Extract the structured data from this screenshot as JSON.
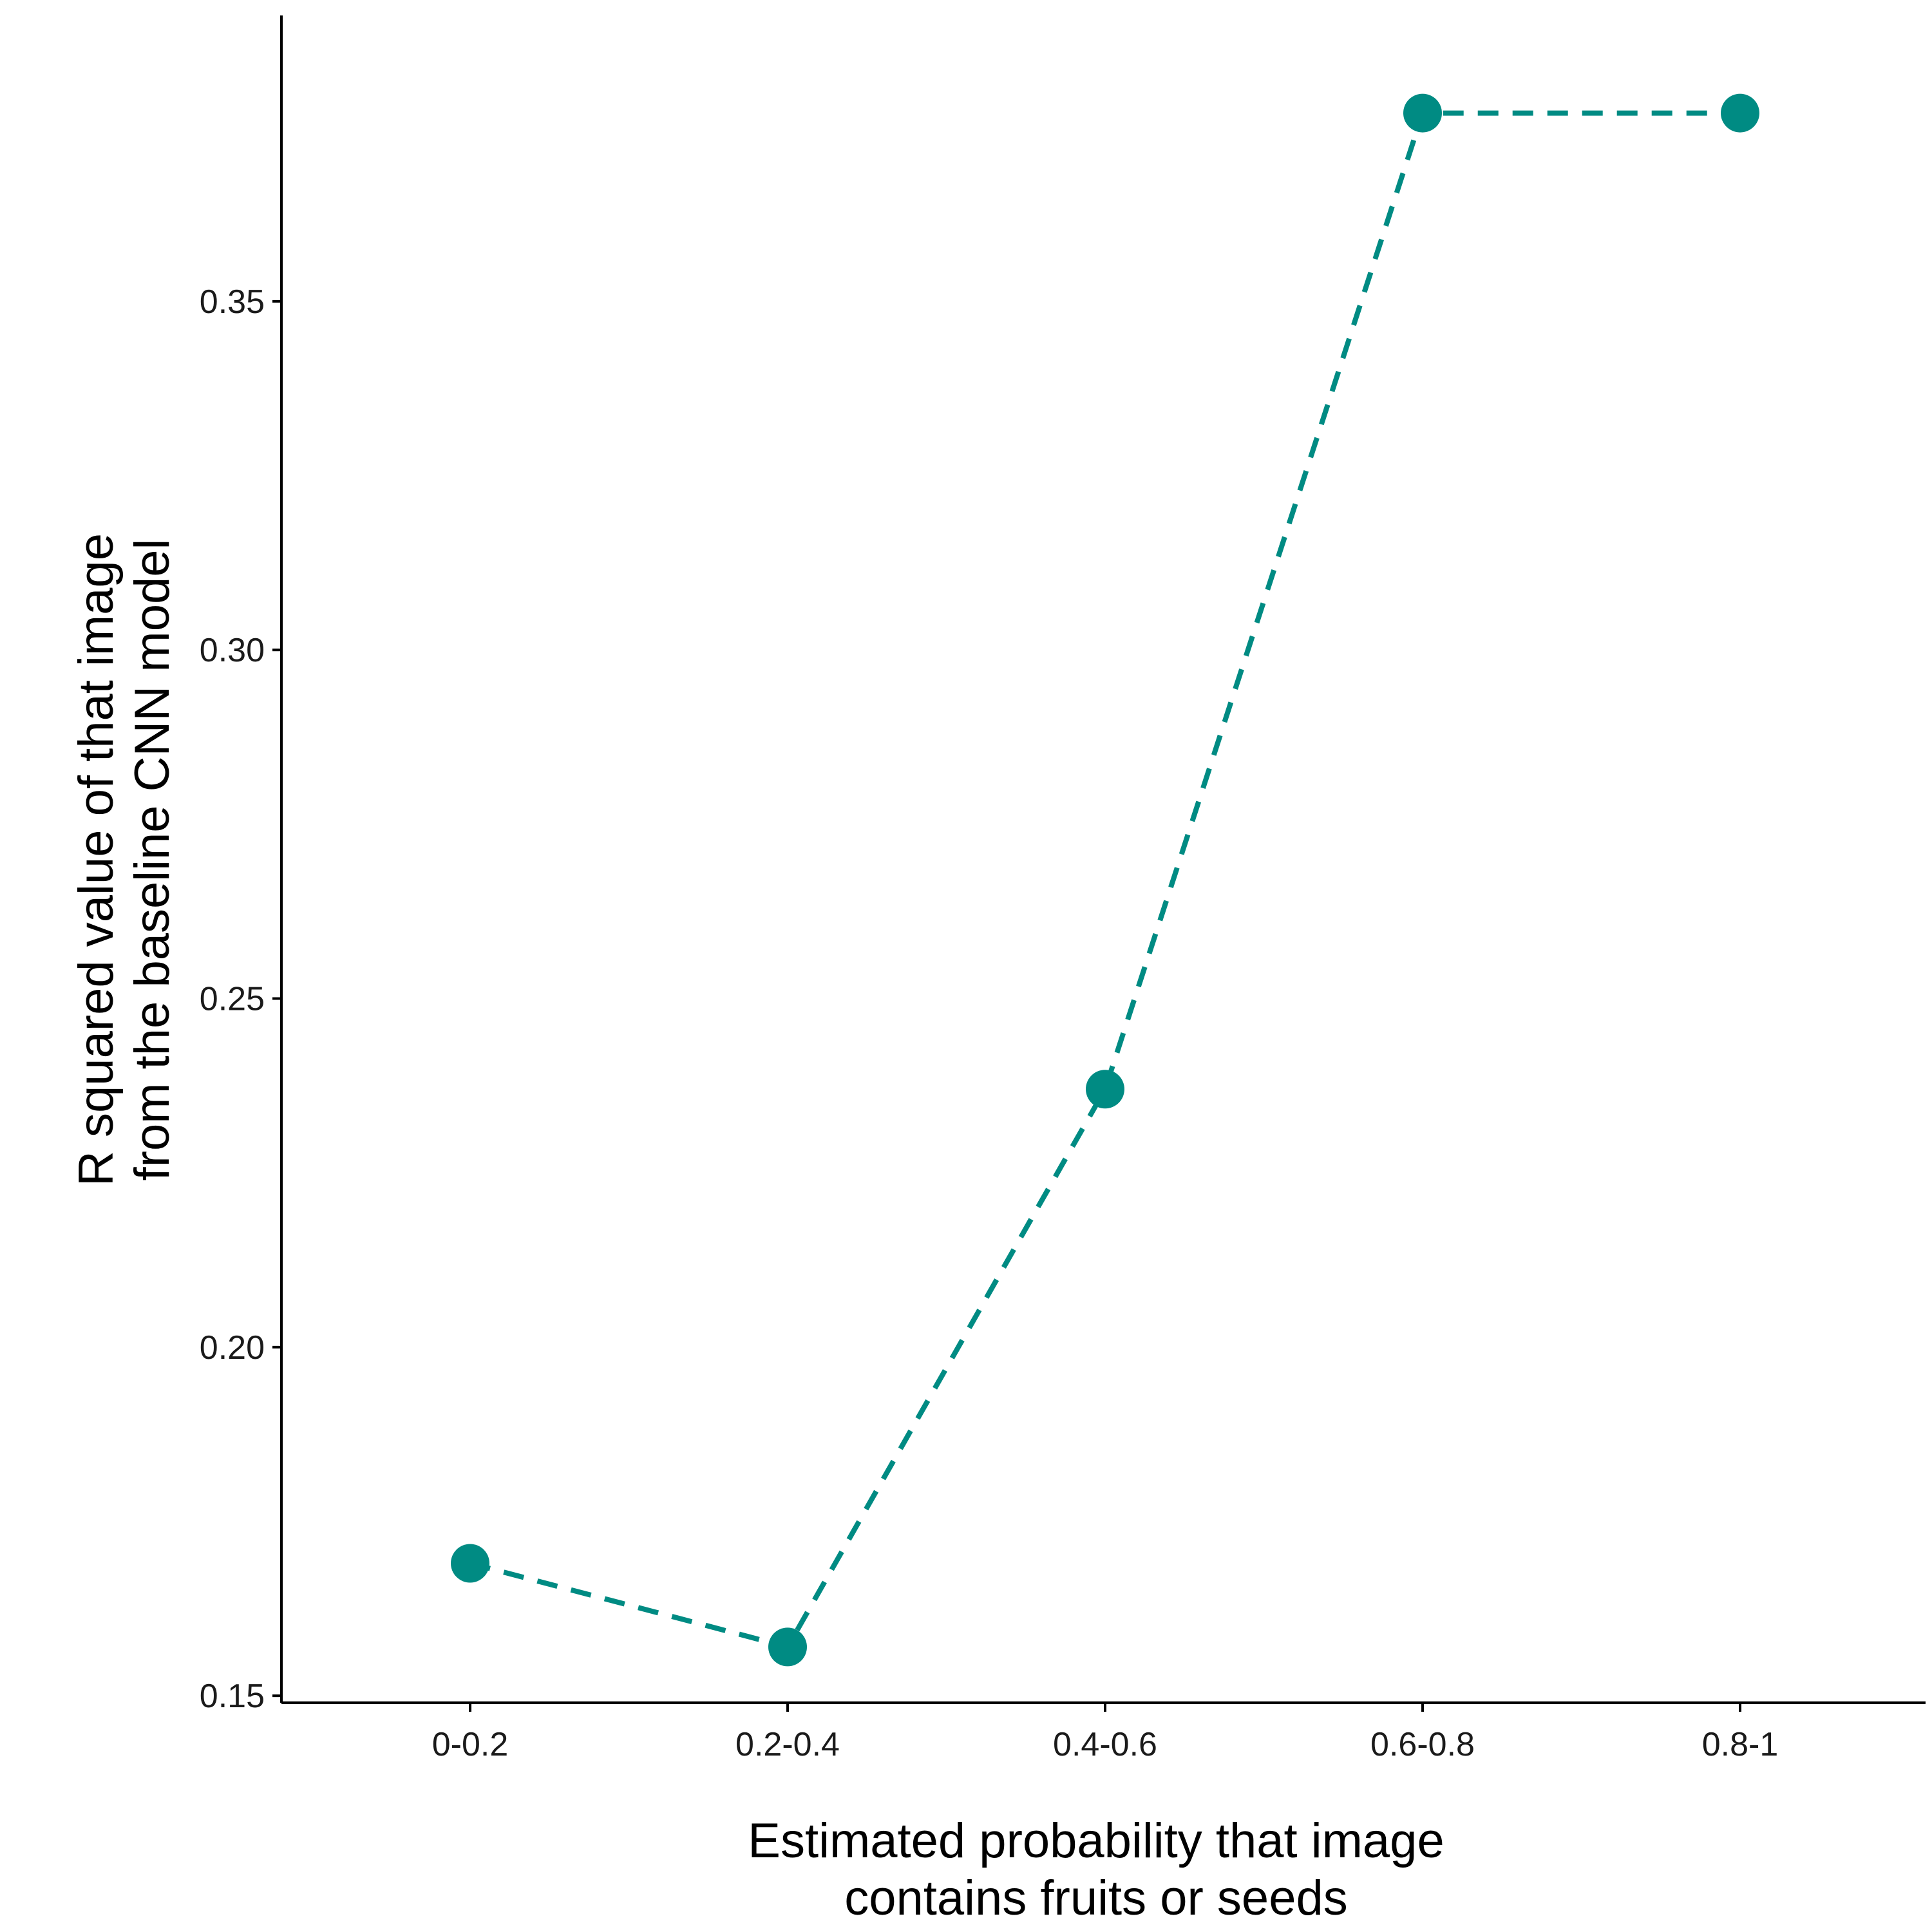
{
  "chart_data": {
    "type": "line",
    "categories": [
      "0-0.2",
      "0.2-0.4",
      "0.4-0.6",
      "0.6-0.8",
      "0.8-1"
    ],
    "series": [
      {
        "values": [
          0.169,
          0.157,
          0.237,
          0.377,
          0.377
        ]
      }
    ],
    "yticks": [
      "0.15",
      "0.20",
      "0.25",
      "0.30",
      "0.35"
    ],
    "ytick_values": [
      0.15,
      0.2,
      0.25,
      0.3,
      0.35
    ],
    "xlabel": [
      "Estimated probability that image",
      "contains fruits or seeds"
    ],
    "ylabel": [
      "R squared value of that image",
      "from the baseline CNN model"
    ],
    "ylim": [
      0.149,
      0.391
    ],
    "line_style": "dashed",
    "marker": "filled circle",
    "grid": false,
    "color": "#008b83"
  }
}
